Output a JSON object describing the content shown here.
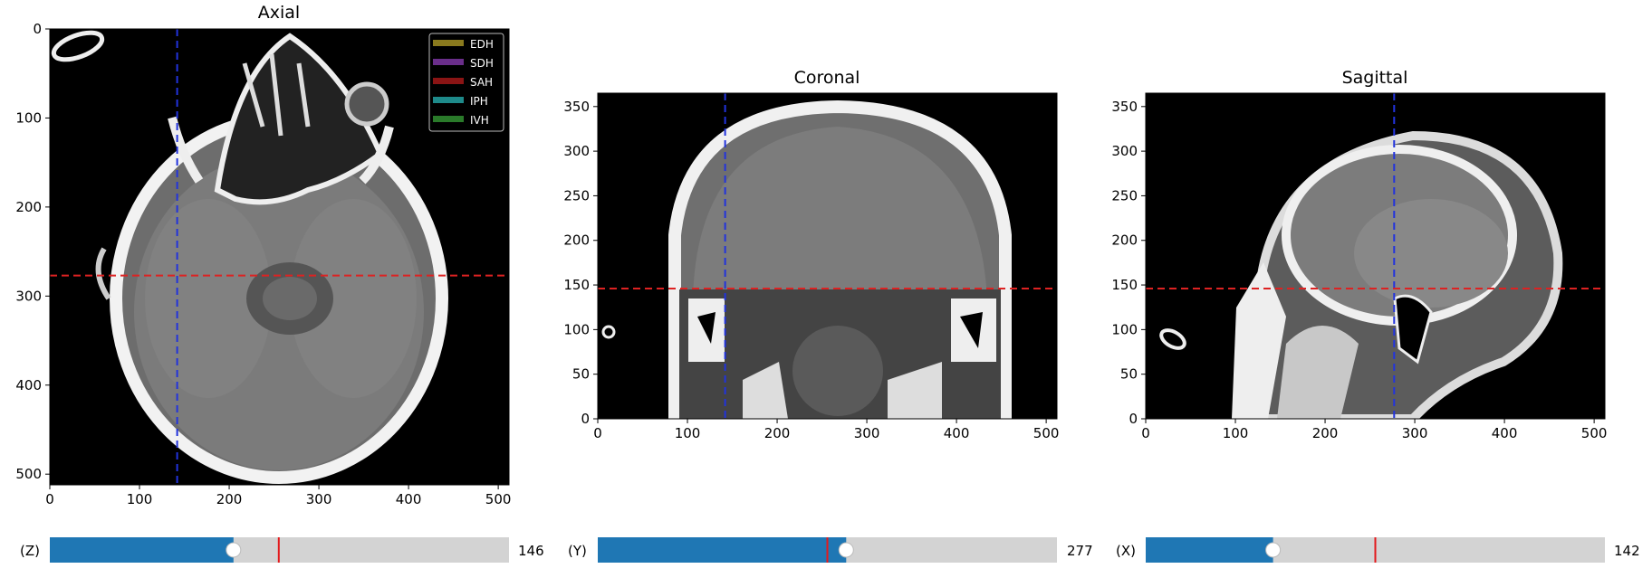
{
  "panels": [
    {
      "id": "axial",
      "title": "Axial",
      "x_ticks": [
        "0",
        "100",
        "200",
        "300",
        "400",
        "500"
      ],
      "y_ticks": [
        "0",
        "100",
        "200",
        "300",
        "400",
        "500"
      ],
      "x_range": [
        0,
        512
      ],
      "y_range": [
        0,
        512
      ],
      "y_inverted": true,
      "crosshair_vertical": 142,
      "crosshair_horizontal": 277,
      "legend": [
        {
          "label": "EDH",
          "color": "#8a7a1e"
        },
        {
          "label": "SDH",
          "color": "#6a2e8a"
        },
        {
          "label": "SAH",
          "color": "#8a1414"
        },
        {
          "label": "IPH",
          "color": "#1e8a8a"
        },
        {
          "label": "IVH",
          "color": "#2a7a2a"
        }
      ]
    },
    {
      "id": "coronal",
      "title": "Coronal",
      "x_ticks": [
        "0",
        "100",
        "200",
        "300",
        "400",
        "500"
      ],
      "y_ticks": [
        "0",
        "50",
        "100",
        "150",
        "200",
        "250",
        "300",
        "350"
      ],
      "x_range": [
        0,
        512
      ],
      "y_range": [
        0,
        365
      ],
      "y_inverted": false,
      "crosshair_vertical": 142,
      "crosshair_horizontal": 146
    },
    {
      "id": "sagittal",
      "title": "Sagittal",
      "x_ticks": [
        "0",
        "100",
        "200",
        "300",
        "400",
        "500"
      ],
      "y_ticks": [
        "0",
        "50",
        "100",
        "150",
        "200",
        "250",
        "300",
        "350"
      ],
      "x_range": [
        0,
        512
      ],
      "y_range": [
        0,
        365
      ],
      "y_inverted": false,
      "crosshair_vertical": 277,
      "crosshair_horizontal": 146
    }
  ],
  "sliders": [
    {
      "id": "z",
      "label": "(Z)",
      "value": 146,
      "value_text": "146",
      "min": 0,
      "max": 365,
      "marker": 182
    },
    {
      "id": "y",
      "label": "(Y)",
      "value": 277,
      "value_text": "277",
      "min": 0,
      "max": 512,
      "marker": 256
    },
    {
      "id": "x",
      "label": "(X)",
      "value": 142,
      "value_text": "142",
      "min": 0,
      "max": 512,
      "marker": 256
    }
  ],
  "colors": {
    "slider_fill": "#1f77b4",
    "slider_track": "#d3d3d3",
    "slider_marker": "#e31a1c",
    "crosshair_vertical": "#2233dd",
    "crosshair_horizontal": "#dd2222"
  }
}
